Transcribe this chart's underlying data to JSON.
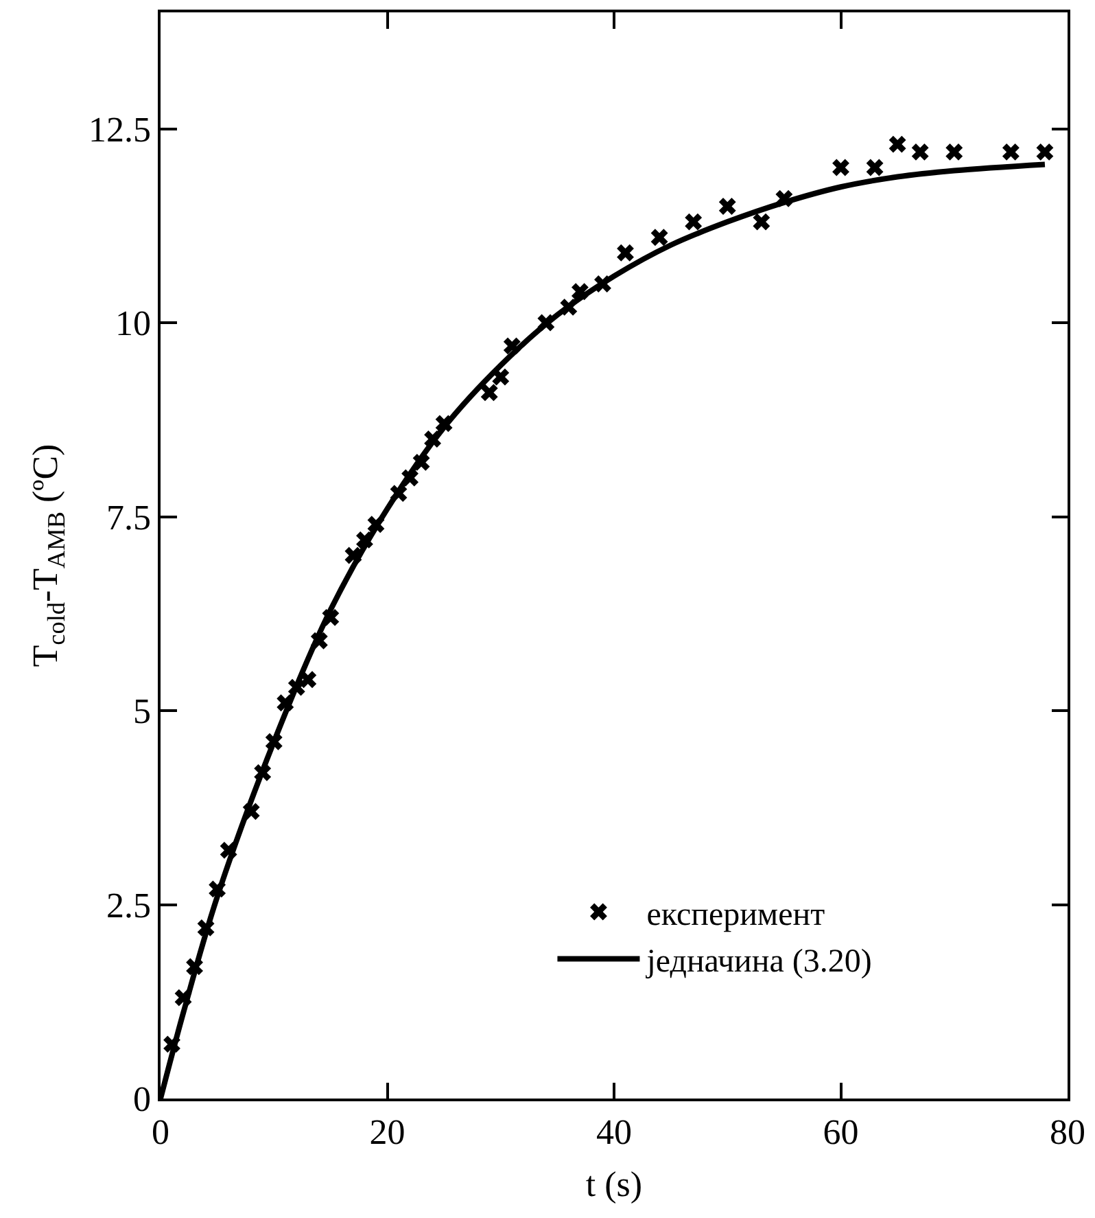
{
  "chart_data": {
    "type": "scatter",
    "xlabel": "t (s)",
    "ylabel": "T$_{cold}$-T$_{AMB}$ (ºC)",
    "xlim": [
      0,
      80
    ],
    "xticks": [
      0,
      20,
      40,
      60,
      80
    ],
    "ylim": [
      0,
      14
    ],
    "yticks": [
      0,
      2.5,
      5,
      7.5,
      10,
      12.5
    ],
    "legend": "bottom right",
    "series": [
      {
        "name": "експеримент",
        "marker": "cross",
        "color": "#000000",
        "x": [
          1,
          2,
          3,
          4,
          5,
          6,
          8,
          9,
          10,
          11,
          12,
          13,
          14,
          15,
          17,
          18,
          19,
          21,
          22,
          23,
          24,
          25,
          29,
          30,
          31,
          34,
          36,
          37,
          39,
          41,
          44,
          47,
          50,
          53,
          55,
          60,
          63,
          65,
          67,
          70,
          75,
          78
        ],
        "values": [
          0.7,
          1.3,
          1.7,
          2.2,
          2.7,
          3.2,
          3.7,
          4.2,
          4.6,
          5.1,
          5.3,
          5.4,
          5.9,
          6.2,
          7.0,
          7.2,
          7.4,
          7.8,
          8.0,
          8.2,
          8.5,
          8.7,
          9.1,
          9.3,
          9.7,
          10.0,
          10.2,
          10.4,
          10.5,
          10.9,
          11.1,
          11.3,
          11.5,
          11.3,
          11.6,
          12.0,
          12.0,
          12.3,
          12.2,
          12.2,
          12.2,
          12.2
        ]
      },
      {
        "name": "једначина (3.20)",
        "type": "line",
        "line_style": "solid",
        "color": "#000000",
        "x": [
          0,
          2,
          5,
          10,
          15,
          20,
          25,
          30,
          35,
          40,
          45,
          50,
          55,
          60,
          65,
          70,
          78
        ],
        "values": [
          0,
          1.1,
          2.6,
          4.6,
          6.3,
          7.6,
          8.65,
          9.45,
          10.1,
          10.6,
          11.0,
          11.3,
          11.55,
          11.75,
          11.88,
          11.96,
          12.04
        ]
      }
    ]
  }
}
